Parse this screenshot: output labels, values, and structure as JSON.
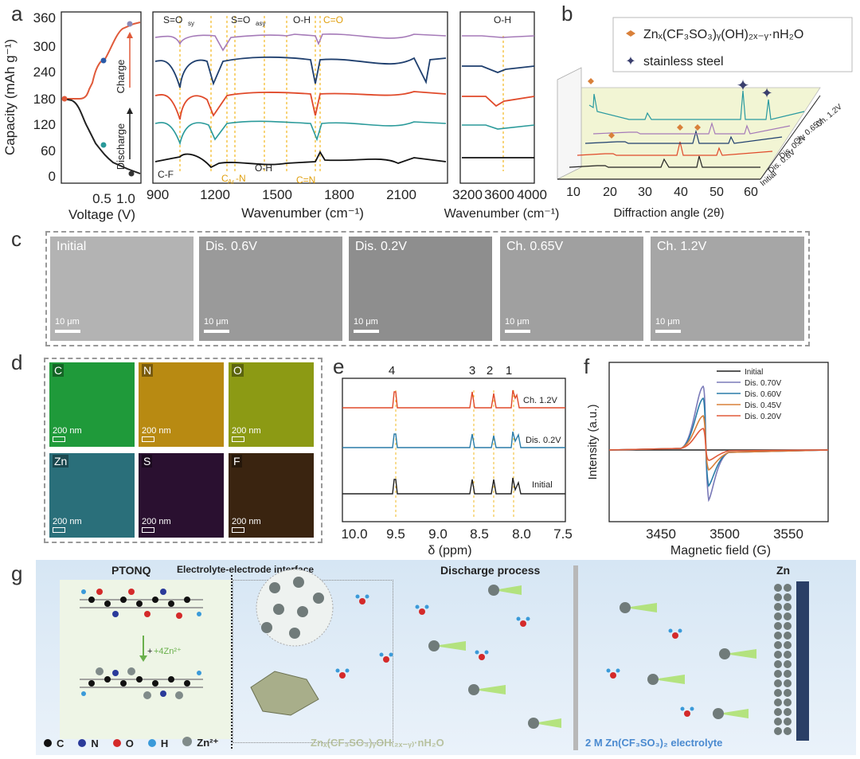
{
  "panels": {
    "a": "a",
    "b": "b",
    "c": "c",
    "d": "d",
    "e": "e",
    "f": "f",
    "g": "g"
  },
  "panel_a": {
    "capacity_axis": {
      "label": "Capacity (mAh g⁻¹)",
      "ticks": [
        "360",
        "300",
        "240",
        "180",
        "120",
        "60",
        "0"
      ]
    },
    "voltage_axis": {
      "label": "Voltage (V)",
      "ticks": [
        "0.5",
        "1.0"
      ]
    },
    "charge_label": "Charge",
    "discharge_label": "Discharge",
    "ftir_axis": {
      "label": "Wavenumber (cm⁻¹)",
      "ticks": [
        "900",
        "1200",
        "1500",
        "1800",
        "2100"
      ]
    },
    "ftir2_axis": {
      "label": "Wavenumber (cm⁻¹)",
      "ticks": [
        "3200",
        "3600",
        "4000"
      ]
    },
    "annotations": {
      "s_o_sy": "S=O",
      "sy": "sy",
      "s_o_asy": "S=O",
      "asy": "asy",
      "o_h_top": "O-H",
      "c_o": "C=O",
      "c_f": "C-F",
      "car_n": "C",
      "ar": "Ar",
      "car_n2": "-N",
      "o_h_bottom": "O-H",
      "c_n": "C=N",
      "o_h_right": "O-H"
    }
  },
  "panel_b": {
    "legend": [
      {
        "label": "Znₓ(CF₃SO₃)ᵧ(OH)₂ₓ₋ᵧ·nH₂O",
        "color": "#d9803a"
      },
      {
        "label": "stainless steel",
        "color": "#3a3f6e"
      }
    ],
    "axis": {
      "label": "Diffraction angle (2θ)",
      "ticks": [
        "10",
        "20",
        "30",
        "40",
        "50",
        "60"
      ]
    },
    "curve_labels": [
      "Ch. 1.2V",
      "Ch. 0.65V",
      "Dis. 0.2V",
      "Dis. 0.6V",
      "Initial"
    ]
  },
  "panel_c": {
    "images": [
      {
        "label": "Initial",
        "scale": "10 μm"
      },
      {
        "label": "Dis. 0.6V",
        "scale": "10 μm"
      },
      {
        "label": "Dis. 0.2V",
        "scale": "10 μm"
      },
      {
        "label": "Ch. 0.65V",
        "scale": "10 μm"
      },
      {
        "label": "Ch. 1.2V",
        "scale": "10 μm"
      }
    ]
  },
  "panel_d": {
    "maps": [
      {
        "el": "C",
        "color": "#1f9a3a",
        "scale": "200 nm"
      },
      {
        "el": "N",
        "color": "#b88a12",
        "scale": "200 nm"
      },
      {
        "el": "O",
        "color": "#8c9a14",
        "scale": "200 nm"
      },
      {
        "el": "Zn",
        "color": "#2a6f7a",
        "scale": "200 nm"
      },
      {
        "el": "S",
        "color": "#2a1030",
        "scale": "200 nm"
      },
      {
        "el": "F",
        "color": "#3a2410",
        "scale": "200 nm"
      }
    ]
  },
  "panel_e": {
    "peaks": [
      "4",
      "3",
      "2",
      "1"
    ],
    "curve_labels": [
      "Ch. 1.2V",
      "Dis. 0.2V",
      "Initial"
    ],
    "axis": {
      "label": "δ (ppm)",
      "ticks": [
        "10.0",
        "9.5",
        "9.0",
        "8.5",
        "8.0",
        "7.5"
      ]
    }
  },
  "panel_f": {
    "legend": [
      {
        "label": "Initial",
        "color": "#222222"
      },
      {
        "label": "Dis. 0.70V",
        "color": "#7a7ab8"
      },
      {
        "label": "Dis. 0.60V",
        "color": "#2a7ca8"
      },
      {
        "label": "Dis. 0.45V",
        "color": "#d9803a"
      },
      {
        "label": "Dis. 0.20V",
        "color": "#e05a3a"
      }
    ],
    "y_label": "Intensity (a.u.)",
    "axis": {
      "label": "Magnetic field (G)",
      "ticks": [
        "3450",
        "3500",
        "3550"
      ]
    }
  },
  "panel_g": {
    "ptonq": "PTONQ",
    "interface": "Electrolyte-electrode interface",
    "discharge": "Discharge process",
    "zn": "Zn",
    "reaction": "+4Zn²⁺",
    "product": "Znₓ(CF₃SO₃)ᵧOH₍₂ₓ₋ᵧ₎·nH₂O",
    "electrolyte": "2 M Zn(CF₃SO₃)₂ electrolyte",
    "legend": [
      {
        "label": "C",
        "color": "#111111"
      },
      {
        "label": "N",
        "color": "#2a3a9a"
      },
      {
        "label": "O",
        "color": "#d42a2a"
      },
      {
        "label": "H",
        "color": "#3a9ad9"
      },
      {
        "label": "Zn²⁺",
        "color": "#808b8a"
      }
    ]
  }
}
